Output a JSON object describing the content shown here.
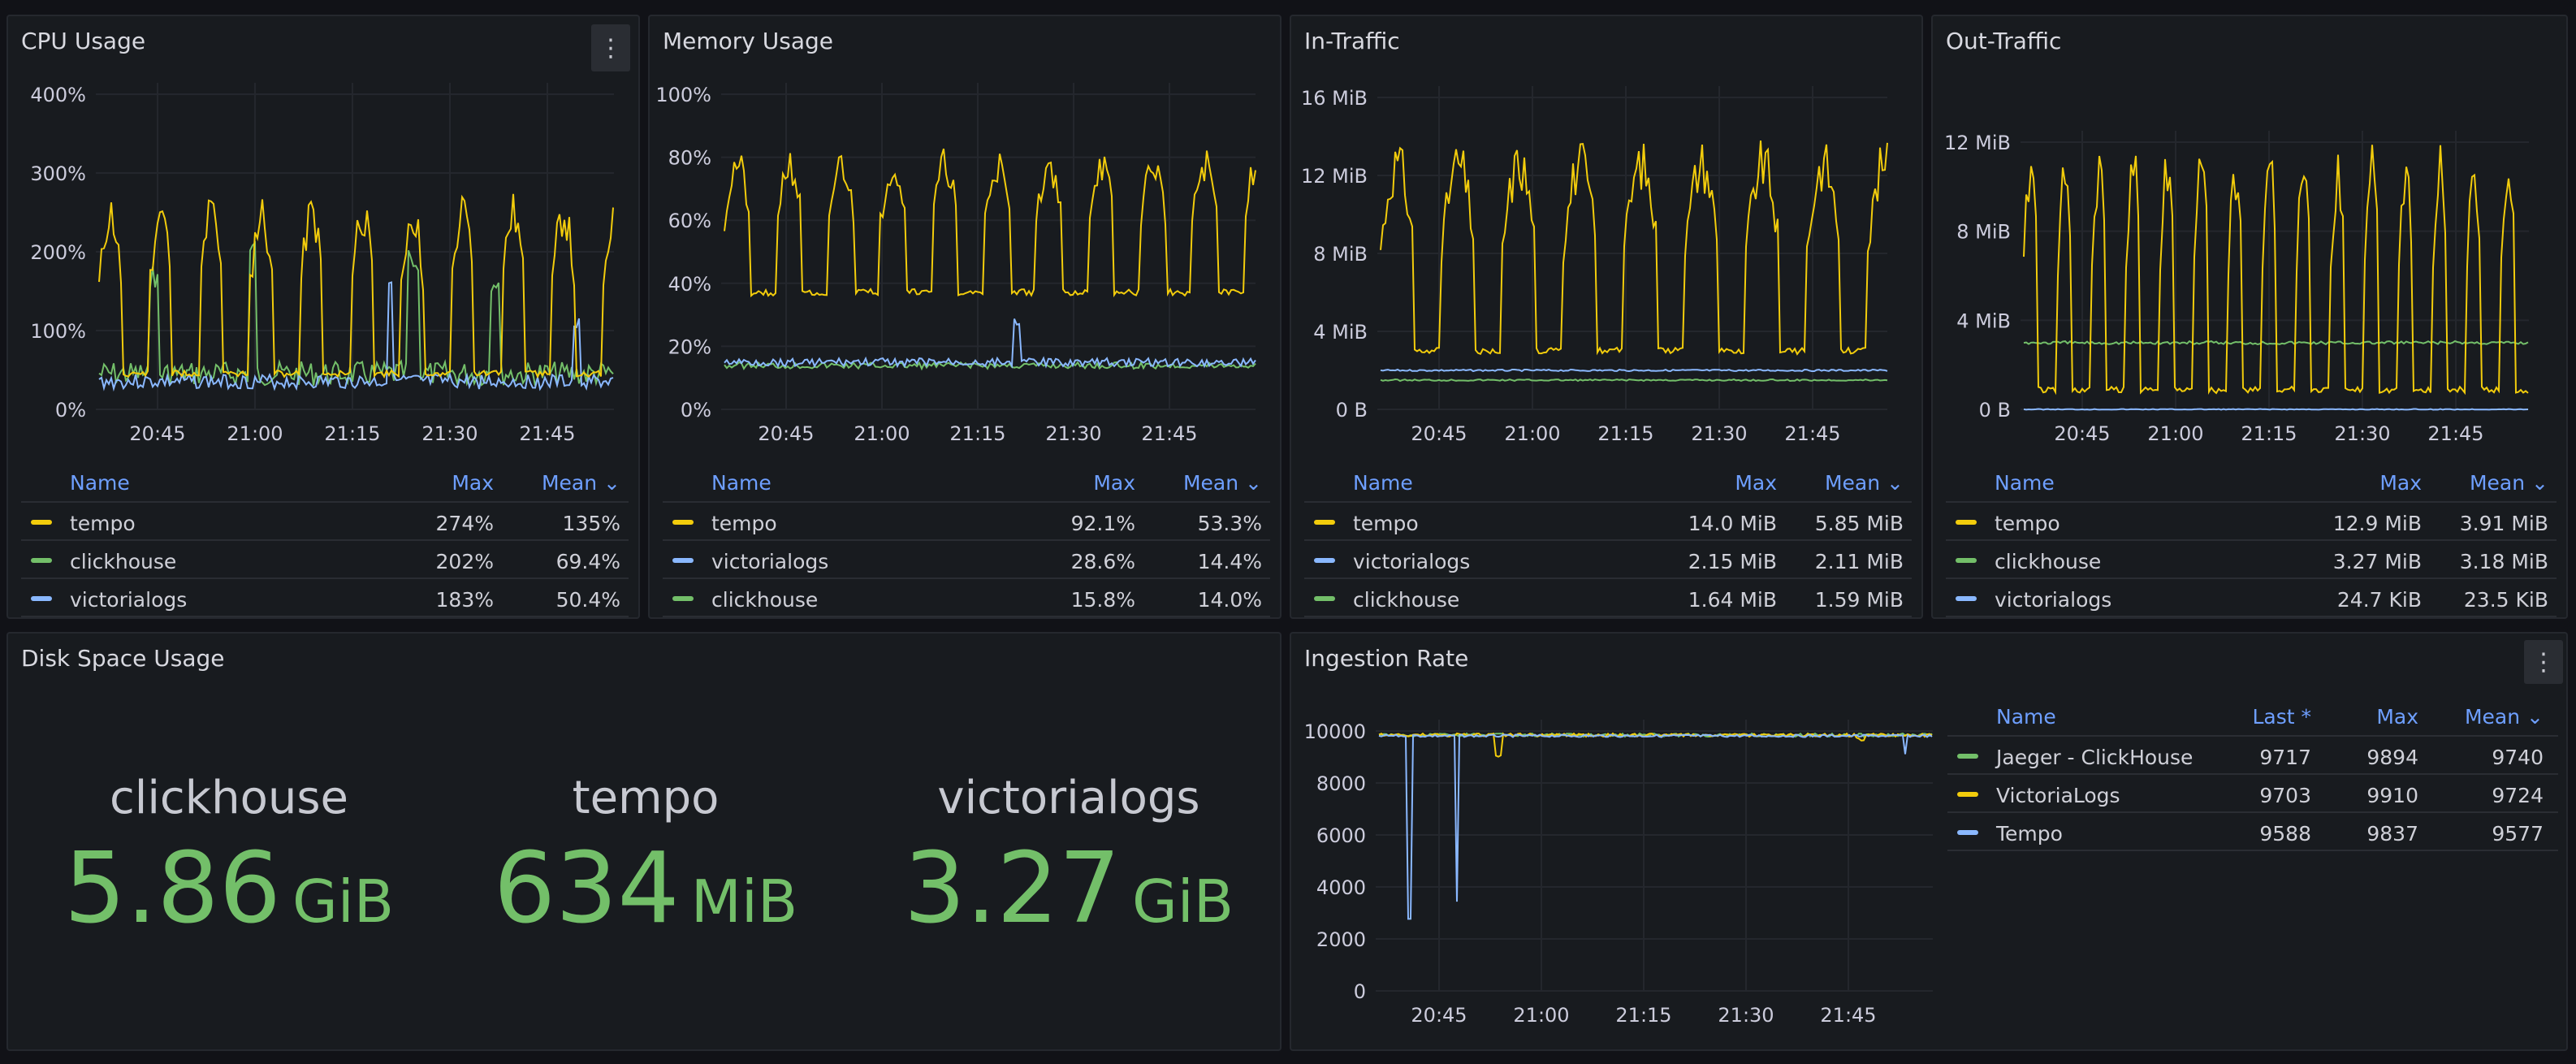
{
  "colors": {
    "yellow": "#f2cc0c",
    "green": "#73bf69",
    "blue": "#8ab8ff"
  },
  "legend_headers": {
    "name": "Name",
    "max": "Max",
    "mean": "Mean ⌄",
    "last": "Last *"
  },
  "menu_icon": "kebab-menu-icon",
  "cpu": {
    "title": "CPU Usage",
    "y_ticks": [
      "400%",
      "300%",
      "200%",
      "100%",
      "0%"
    ],
    "x_ticks": [
      "20:45",
      "21:00",
      "21:15",
      "21:30",
      "21:45"
    ],
    "rows": [
      {
        "name": "tempo",
        "max": "274%",
        "mean": "135%",
        "color": "#f2cc0c"
      },
      {
        "name": "clickhouse",
        "max": "202%",
        "mean": "69.4%",
        "color": "#73bf69"
      },
      {
        "name": "victorialogs",
        "max": "183%",
        "mean": "50.4%",
        "color": "#8ab8ff"
      }
    ]
  },
  "memory": {
    "title": "Memory Usage",
    "y_ticks": [
      "100%",
      "80%",
      "60%",
      "40%",
      "20%",
      "0%"
    ],
    "x_ticks": [
      "20:45",
      "21:00",
      "21:15",
      "21:30",
      "21:45"
    ],
    "rows": [
      {
        "name": "tempo",
        "max": "92.1%",
        "mean": "53.3%",
        "color": "#f2cc0c"
      },
      {
        "name": "victorialogs",
        "max": "28.6%",
        "mean": "14.4%",
        "color": "#8ab8ff"
      },
      {
        "name": "clickhouse",
        "max": "15.8%",
        "mean": "14.0%",
        "color": "#73bf69"
      }
    ]
  },
  "in_traffic": {
    "title": "In-Traffic",
    "y_ticks": [
      "16 MiB",
      "12 MiB",
      "8 MiB",
      "4 MiB",
      "0 B"
    ],
    "x_ticks": [
      "20:45",
      "21:00",
      "21:15",
      "21:30",
      "21:45"
    ],
    "rows": [
      {
        "name": "tempo",
        "max": "14.0 MiB",
        "mean": "5.85 MiB",
        "color": "#f2cc0c"
      },
      {
        "name": "victorialogs",
        "max": "2.15 MiB",
        "mean": "2.11 MiB",
        "color": "#8ab8ff"
      },
      {
        "name": "clickhouse",
        "max": "1.64 MiB",
        "mean": "1.59 MiB",
        "color": "#73bf69"
      }
    ]
  },
  "out_traffic": {
    "title": "Out-Traffic",
    "y_ticks": [
      "12 MiB",
      "8 MiB",
      "4 MiB",
      "0 B"
    ],
    "x_ticks": [
      "20:45",
      "21:00",
      "21:15",
      "21:30",
      "21:45"
    ],
    "rows": [
      {
        "name": "tempo",
        "max": "12.9 MiB",
        "mean": "3.91 MiB",
        "color": "#f2cc0c"
      },
      {
        "name": "clickhouse",
        "max": "3.27 MiB",
        "mean": "3.18 MiB",
        "color": "#73bf69"
      },
      {
        "name": "victorialogs",
        "max": "24.7 KiB",
        "mean": "23.5 KiB",
        "color": "#8ab8ff"
      }
    ]
  },
  "disk": {
    "title": "Disk Space Usage",
    "stats": [
      {
        "name": "clickhouse",
        "value": "5.86",
        "unit": "GiB"
      },
      {
        "name": "tempo",
        "value": "634",
        "unit": "MiB"
      },
      {
        "name": "victorialogs",
        "value": "3.27",
        "unit": "GiB"
      }
    ]
  },
  "ingestion": {
    "title": "Ingestion Rate",
    "y_ticks": [
      "10000",
      "8000",
      "6000",
      "4000",
      "2000",
      "0"
    ],
    "x_ticks": [
      "20:45",
      "21:00",
      "21:15",
      "21:30",
      "21:45"
    ],
    "rows": [
      {
        "name": "Jaeger - ClickHouse",
        "last": "9717",
        "max": "9894",
        "mean": "9740",
        "color": "#73bf69"
      },
      {
        "name": "VictoriaLogs",
        "last": "9703",
        "max": "9910",
        "mean": "9724",
        "color": "#f2cc0c"
      },
      {
        "name": "Tempo",
        "last": "9588",
        "max": "9837",
        "mean": "9577",
        "color": "#8ab8ff"
      }
    ]
  }
}
